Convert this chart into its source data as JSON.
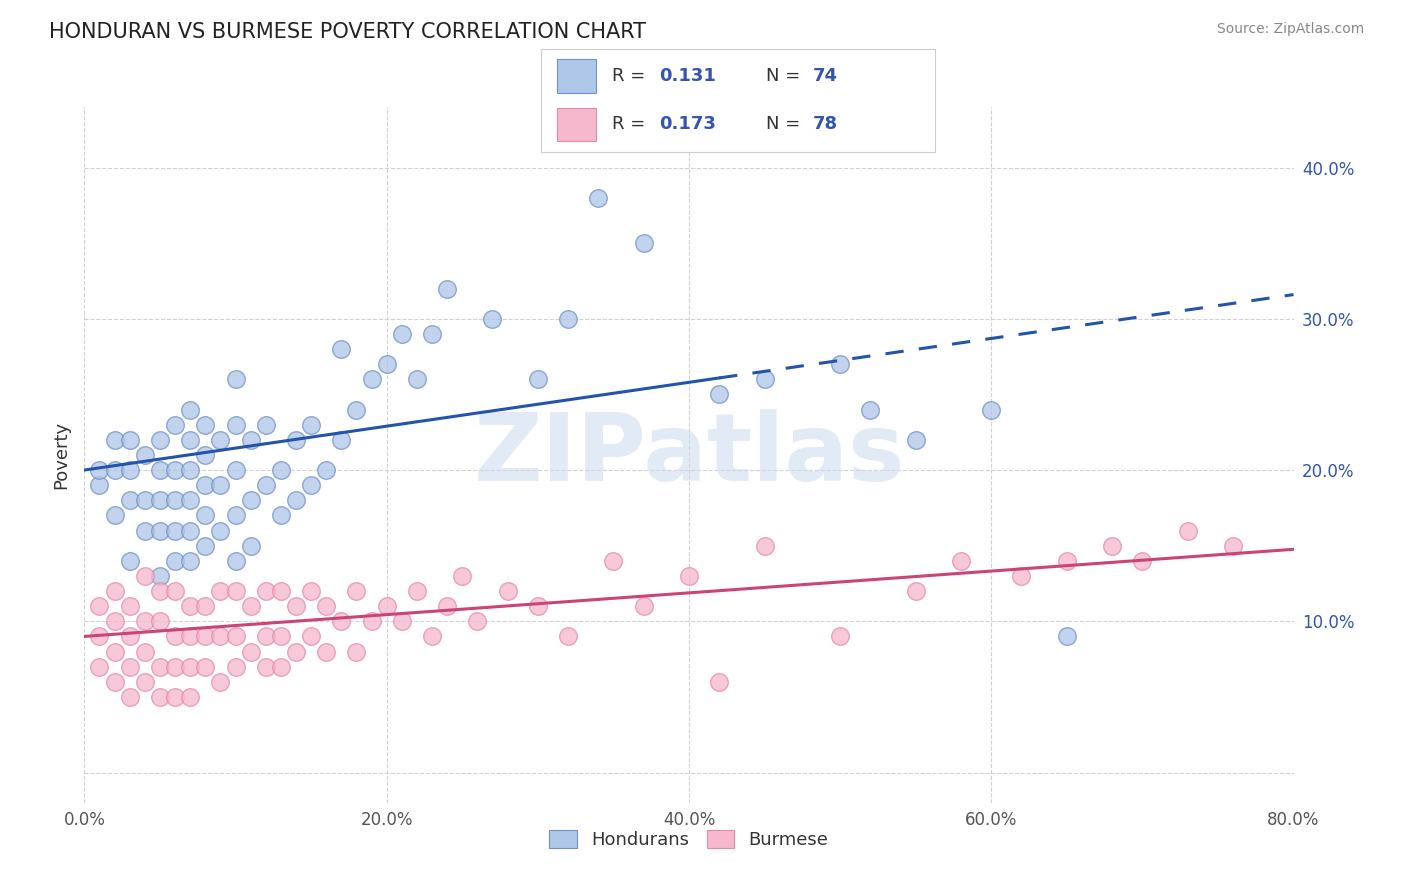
{
  "title": "HONDURAN VS BURMESE POVERTY CORRELATION CHART",
  "source_text": "Source: ZipAtlas.com",
  "ylabel": "Poverty",
  "xlim": [
    0.0,
    0.8
  ],
  "ylim": [
    -0.02,
    0.44
  ],
  "xticks": [
    0.0,
    0.2,
    0.4,
    0.6,
    0.8
  ],
  "xticklabels": [
    "0.0%",
    "20.0%",
    "40.0%",
    "60.0%",
    "80.0%"
  ],
  "yticks": [
    0.0,
    0.1,
    0.2,
    0.3,
    0.4
  ],
  "yticklabels": [
    "",
    "10.0%",
    "20.0%",
    "30.0%",
    "40.0%"
  ],
  "blue_R": 0.131,
  "blue_N": 74,
  "pink_R": 0.173,
  "pink_N": 78,
  "blue_fill_color": "#AEC6E8",
  "blue_edge_color": "#7090C8",
  "pink_fill_color": "#F5B8CC",
  "pink_edge_color": "#E888A8",
  "blue_line_color": "#2255AA",
  "pink_line_color": "#CC4477",
  "legend_text_color": "#3355AA",
  "legend_label_color": "#333333",
  "background_color": "#ffffff",
  "watermark": "ZIPatlas",
  "blue_line_solid_end": 0.42,
  "blue_line_dash_start": 0.42,
  "blue_line_intercept": 0.2,
  "blue_line_slope": 0.145,
  "pink_line_intercept": 0.09,
  "pink_line_slope": 0.072,
  "blue_scatter_x": [
    0.01,
    0.01,
    0.02,
    0.02,
    0.02,
    0.03,
    0.03,
    0.03,
    0.03,
    0.04,
    0.04,
    0.04,
    0.05,
    0.05,
    0.05,
    0.05,
    0.05,
    0.06,
    0.06,
    0.06,
    0.06,
    0.06,
    0.07,
    0.07,
    0.07,
    0.07,
    0.07,
    0.07,
    0.08,
    0.08,
    0.08,
    0.08,
    0.08,
    0.09,
    0.09,
    0.09,
    0.1,
    0.1,
    0.1,
    0.1,
    0.1,
    0.11,
    0.11,
    0.11,
    0.12,
    0.12,
    0.13,
    0.13,
    0.14,
    0.14,
    0.15,
    0.15,
    0.16,
    0.17,
    0.17,
    0.18,
    0.19,
    0.2,
    0.21,
    0.22,
    0.23,
    0.24,
    0.27,
    0.3,
    0.32,
    0.34,
    0.37,
    0.42,
    0.45,
    0.5,
    0.52,
    0.55,
    0.6,
    0.65
  ],
  "blue_scatter_y": [
    0.19,
    0.2,
    0.17,
    0.2,
    0.22,
    0.14,
    0.18,
    0.2,
    0.22,
    0.16,
    0.18,
    0.21,
    0.13,
    0.16,
    0.18,
    0.2,
    0.22,
    0.14,
    0.16,
    0.18,
    0.2,
    0.23,
    0.14,
    0.16,
    0.18,
    0.2,
    0.22,
    0.24,
    0.15,
    0.17,
    0.19,
    0.21,
    0.23,
    0.16,
    0.19,
    0.22,
    0.14,
    0.17,
    0.2,
    0.23,
    0.26,
    0.15,
    0.18,
    0.22,
    0.19,
    0.23,
    0.17,
    0.2,
    0.18,
    0.22,
    0.19,
    0.23,
    0.2,
    0.22,
    0.28,
    0.24,
    0.26,
    0.27,
    0.29,
    0.26,
    0.29,
    0.32,
    0.3,
    0.26,
    0.3,
    0.38,
    0.35,
    0.25,
    0.26,
    0.27,
    0.24,
    0.22,
    0.24,
    0.09
  ],
  "pink_scatter_x": [
    0.01,
    0.01,
    0.01,
    0.02,
    0.02,
    0.02,
    0.02,
    0.03,
    0.03,
    0.03,
    0.03,
    0.04,
    0.04,
    0.04,
    0.04,
    0.05,
    0.05,
    0.05,
    0.05,
    0.06,
    0.06,
    0.06,
    0.06,
    0.07,
    0.07,
    0.07,
    0.07,
    0.08,
    0.08,
    0.08,
    0.09,
    0.09,
    0.09,
    0.1,
    0.1,
    0.1,
    0.11,
    0.11,
    0.12,
    0.12,
    0.12,
    0.13,
    0.13,
    0.13,
    0.14,
    0.14,
    0.15,
    0.15,
    0.16,
    0.16,
    0.17,
    0.18,
    0.18,
    0.19,
    0.2,
    0.21,
    0.22,
    0.23,
    0.24,
    0.25,
    0.26,
    0.28,
    0.3,
    0.32,
    0.35,
    0.37,
    0.4,
    0.42,
    0.45,
    0.5,
    0.55,
    0.58,
    0.62,
    0.65,
    0.68,
    0.7,
    0.73,
    0.76
  ],
  "pink_scatter_y": [
    0.07,
    0.09,
    0.11,
    0.06,
    0.08,
    0.1,
    0.12,
    0.05,
    0.07,
    0.09,
    0.11,
    0.06,
    0.08,
    0.1,
    0.13,
    0.05,
    0.07,
    0.1,
    0.12,
    0.05,
    0.07,
    0.09,
    0.12,
    0.05,
    0.07,
    0.09,
    0.11,
    0.07,
    0.09,
    0.11,
    0.06,
    0.09,
    0.12,
    0.07,
    0.09,
    0.12,
    0.08,
    0.11,
    0.07,
    0.09,
    0.12,
    0.07,
    0.09,
    0.12,
    0.08,
    0.11,
    0.09,
    0.12,
    0.08,
    0.11,
    0.1,
    0.08,
    0.12,
    0.1,
    0.11,
    0.1,
    0.12,
    0.09,
    0.11,
    0.13,
    0.1,
    0.12,
    0.11,
    0.09,
    0.14,
    0.11,
    0.13,
    0.06,
    0.15,
    0.09,
    0.12,
    0.14,
    0.13,
    0.14,
    0.15,
    0.14,
    0.16,
    0.15
  ]
}
